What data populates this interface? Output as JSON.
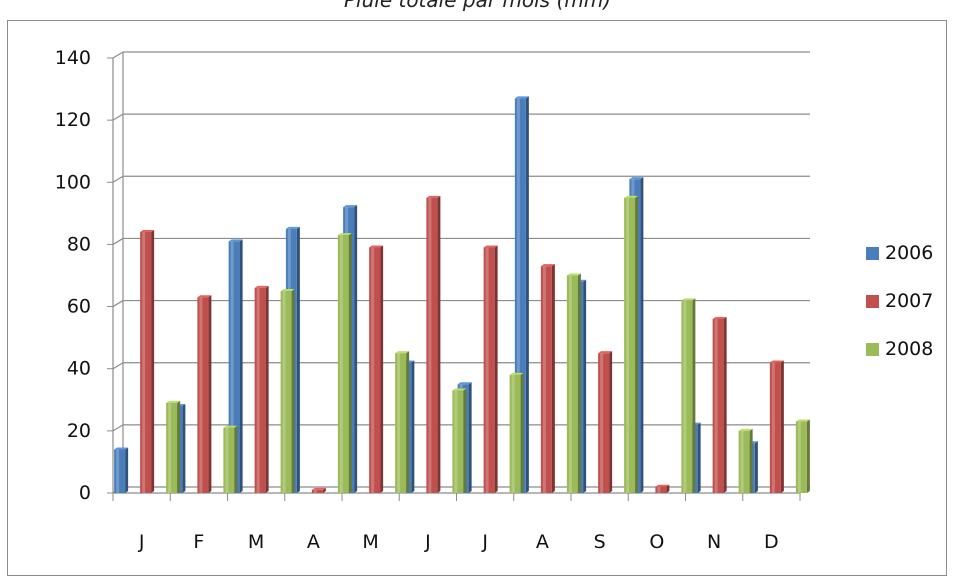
{
  "chart_data": {
    "type": "bar",
    "title": "Pluie totale par mois (mm)",
    "xlabel": "",
    "ylabel": "",
    "categories": [
      "J",
      "F",
      "M",
      "A",
      "M",
      "J",
      "J",
      "A",
      "S",
      "O",
      "N",
      "D"
    ],
    "ylim": [
      0,
      140
    ],
    "yticks": [
      0,
      20,
      40,
      60,
      80,
      100,
      120,
      140
    ],
    "grid": true,
    "legend": "right",
    "series": [
      {
        "name": "2006",
        "color": "#4a7ebb",
        "values": [
          14,
          28,
          81,
          85,
          92,
          42,
          35,
          127,
          68,
          101,
          22,
          16
        ]
      },
      {
        "name": "2007",
        "color": "#c0504d",
        "values": [
          84,
          63,
          66,
          1,
          79,
          95,
          79,
          73,
          45,
          2,
          56,
          42
        ]
      },
      {
        "name": "2008",
        "color": "#9bbb59",
        "values": [
          29,
          21,
          65,
          83,
          45,
          33,
          38,
          70,
          95,
          62,
          20,
          23
        ]
      }
    ]
  }
}
